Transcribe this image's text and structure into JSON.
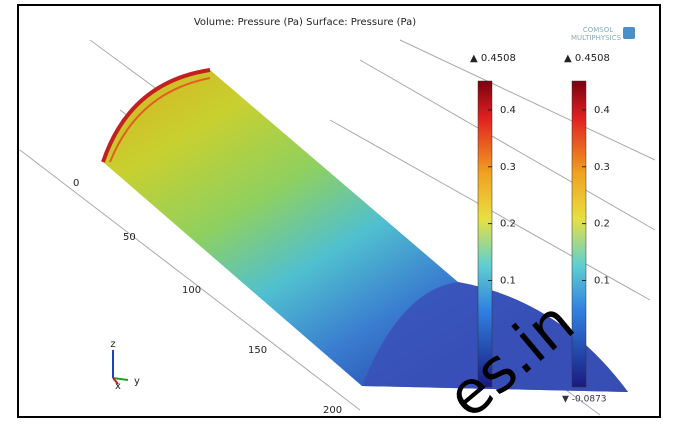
{
  "title": "Volume: Pressure (Pa)  Surface: Pressure (Pa)",
  "logo": {
    "line1": "COMSOL",
    "line2": "MULTIPHYSICS"
  },
  "axis_labels": [
    "0",
    "50",
    "100",
    "150",
    "200"
  ],
  "triad": {
    "z": "z",
    "x": "x",
    "y": "y"
  },
  "colorbars": [
    {
      "max_label": "▲ 0.4508",
      "max": 0.4508,
      "min": -0.0873,
      "ticks": [
        0.4,
        0.3,
        0.2,
        0.1
      ]
    },
    {
      "max_label": "▲ 0.4508",
      "max": 0.4508,
      "min": -0.0873,
      "ticks": [
        0.4,
        0.3,
        0.2,
        0.1
      ],
      "min_label": "▼ -0.0873"
    }
  ],
  "watermark": "es.in"
}
